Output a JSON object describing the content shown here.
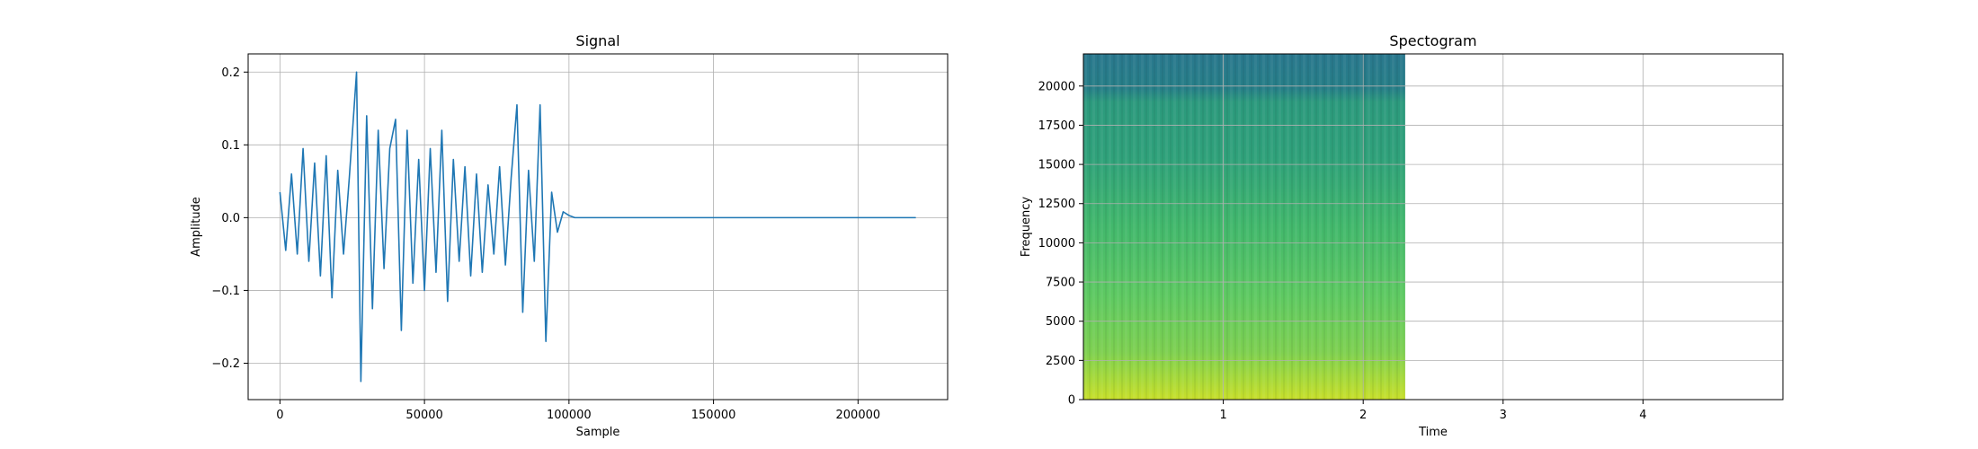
{
  "chart_data": [
    {
      "type": "line",
      "title": "Signal",
      "xlabel": "Sample",
      "ylabel": "Amplitude",
      "xlim": [
        -11000,
        231000
      ],
      "ylim": [
        -0.25,
        0.225
      ],
      "xticks": [
        0,
        50000,
        100000,
        150000,
        200000
      ],
      "xtick_labels": [
        "0",
        "50000",
        "100000",
        "150000",
        "200000"
      ],
      "yticks": [
        -0.2,
        -0.1,
        0.0,
        0.1,
        0.2
      ],
      "ytick_labels": [
        "−0.2",
        "−0.1",
        "0.0",
        "0.1",
        "0.2"
      ],
      "grid": true,
      "color": "#1f77b4",
      "series": [
        {
          "x": [
            0,
            2000,
            4000,
            6000,
            8000,
            10000,
            12000,
            14000,
            16000,
            18000,
            20000,
            22000,
            24000,
            26500,
            28000,
            30000,
            32000,
            34000,
            36000,
            38000,
            40000,
            42000,
            44000,
            46000,
            48000,
            50000,
            52000,
            54000,
            56000,
            58000,
            60000,
            62000,
            64000,
            66000,
            68000,
            70000,
            72000,
            74000,
            76000,
            78000,
            80000,
            82000,
            84000,
            86000,
            88000,
            90000,
            92000,
            94000,
            96000,
            98000,
            100000,
            102000,
            220000
          ],
          "y": [
            0.035,
            -0.045,
            0.06,
            -0.05,
            0.095,
            -0.06,
            0.075,
            -0.08,
            0.085,
            -0.11,
            0.065,
            -0.05,
            0.055,
            0.2,
            -0.225,
            0.14,
            -0.125,
            0.12,
            -0.07,
            0.095,
            0.135,
            -0.155,
            0.12,
            -0.09,
            0.08,
            -0.1,
            0.095,
            -0.075,
            0.12,
            -0.115,
            0.08,
            -0.06,
            0.07,
            -0.08,
            0.06,
            -0.075,
            0.045,
            -0.05,
            0.07,
            -0.065,
            0.055,
            0.155,
            -0.13,
            0.065,
            -0.06,
            0.155,
            -0.17,
            0.035,
            -0.02,
            0.008,
            0.003,
            0.0,
            0.0
          ]
        }
      ]
    },
    {
      "type": "heatmap",
      "title": "Spectogram",
      "xlabel": "Time",
      "ylabel": "Frequency",
      "xlim": [
        0,
        5.0
      ],
      "ylim": [
        0,
        22050
      ],
      "data_xlim": [
        0,
        2.3
      ],
      "xticks": [
        1,
        2,
        3,
        4
      ],
      "xtick_labels": [
        "1",
        "2",
        "3",
        "4"
      ],
      "yticks": [
        0,
        2500,
        5000,
        7500,
        10000,
        12500,
        15000,
        17500,
        20000
      ],
      "ytick_labels": [
        "0",
        "2500",
        "5000",
        "7500",
        "10000",
        "12500",
        "15000",
        "17500",
        "20000"
      ],
      "grid": true,
      "colormap": "viridis"
    }
  ]
}
